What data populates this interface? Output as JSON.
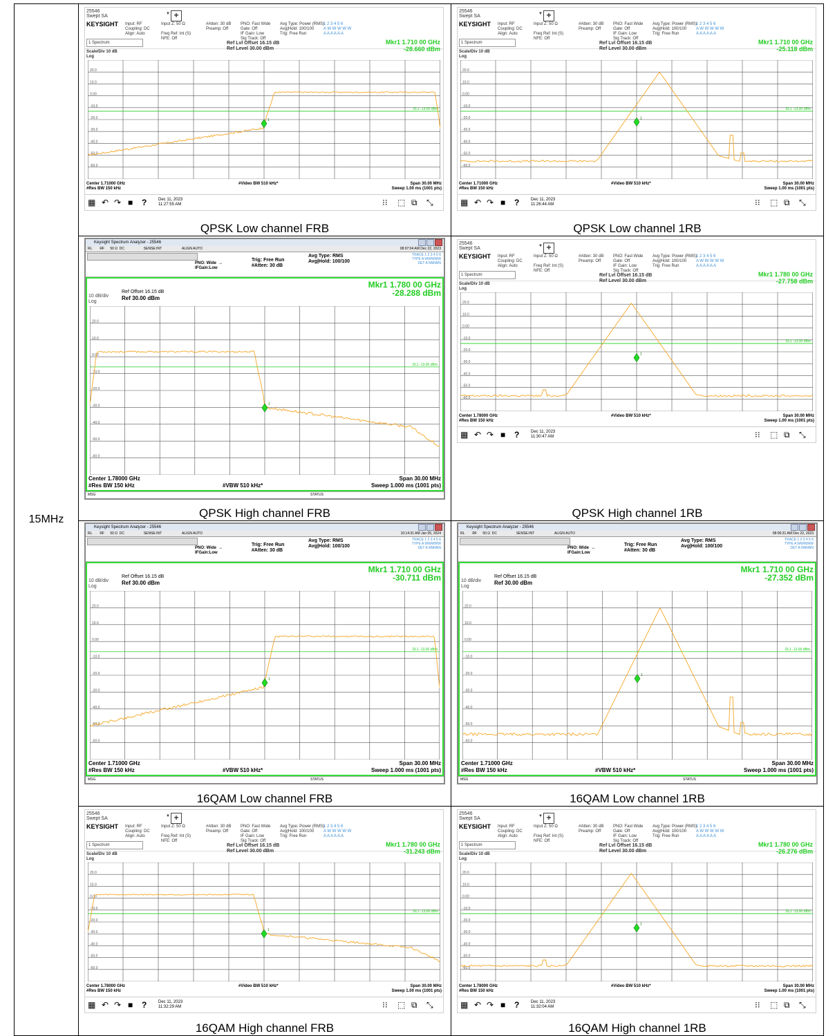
{
  "band_label": "15MHz",
  "keysight": {
    "instrument_id": "25546",
    "mode": "Swept SA",
    "brand": "KEYSIGHT",
    "input_col": "Input: RF\nCoupling: DC\nAlign: Auto",
    "imp_col": "Input Z: 50 Ω\n\nFreq Ref: Int (S)\nNFE: Off",
    "atten_col": "#Atten: 30 dB\nPreamp: Off",
    "pno_col": "PNO: Fast Wide\nGate: Off\nIF Gain: Low\nSig Track: Off",
    "avg_col": "Avg Type: Power (RMS)\nAvg|Hold: 100/100\nTrig: Free Run",
    "trace_col": "1 2 3 4 5 6\nA W W W W W\nA A A A A A",
    "spectrum_label": "1 Spectrum",
    "ref_offset": "Ref Lvl Offset 16.15 dB",
    "ref_level": "Ref Level 30.00 dBm",
    "scale": "Scale/Div 10 dB",
    "log": "Log",
    "vbw": "#Video BW 510 kHz*",
    "span": "Span 30.00 MHz",
    "sweep": "Sweep 1.00 ms (1001 pts)",
    "res_bw": "#Res BW 150 kHz"
  },
  "windows": {
    "title": "Keysight Spectrum Analyzer - 25546",
    "bar": "RL        RF      50 Ω  DC                    SENSE:INT                     ALIGN AUTO",
    "pno": "PNO: Wide  ↔  \nIFGain:Low",
    "trig": "Trig: Free Run\n#Atten: 30 dB",
    "avg": "Avg Type: RMS\nAvg|Hold: 100/100",
    "trace": "TRACE 1 2 3 4 5 6\nTYPE A WWWWW\nDET A NNNNN",
    "ref_offset": "Ref Offset 16.15 dB",
    "ref": "Ref 30.00 dBm",
    "scale": "10 dB/div",
    "log": "Log",
    "vbw": "#VBW 510 kHz*",
    "span": "Span 30.00 MHz",
    "sweep": "Sweep  1.000 ms (1001 pts)",
    "res_bw": "#Res BW 150 kHz",
    "msg": "MSG",
    "status": "STATUS",
    "dl_label": "DL1 -13.00 dBm"
  },
  "panels": [
    {
      "id": "p1",
      "caption": "QPSK Low channel FRB",
      "style": "keysight",
      "center": "Center 1.71000 GHz",
      "mkr_freq": "Mkr1  1.710 00 GHz",
      "mkr_val": "-28.660 dBm",
      "date": "Dec 11, 2023",
      "time": "11:27:55 AM",
      "trace": "frb-low"
    },
    {
      "id": "p2",
      "caption": "QPSK Low channel 1RB",
      "style": "keysight",
      "center": "Center 1.71000 GHz",
      "mkr_freq": "Mkr1  1.710 00 GHz",
      "mkr_val": "-25.118 dBm",
      "date": "Dec 11, 2023",
      "time": "11:26:44 AM",
      "trace": "1rb-low"
    },
    {
      "id": "p3",
      "caption": "QPSK High channel FRB",
      "style": "windows",
      "center": "Center 1.78000 GHz",
      "mkr_freq": "Mkr1 1.780 00 GHz",
      "mkr_val": "-28.288 dBm",
      "datetime": "08:07:04 AM Dec 22, 2023",
      "trace": "frb-high"
    },
    {
      "id": "p4",
      "caption": "QPSK High channel 1RB",
      "style": "keysight",
      "center": "Center 1.78000 GHz",
      "mkr_freq": "Mkr1  1.780 00 GHz",
      "mkr_val": "-27.758 dBm",
      "date": "Dec 11, 2023",
      "time": "11:30:47 AM",
      "trace": "1rb-high"
    },
    {
      "id": "p5",
      "caption": "16QAM Low channel FRB",
      "style": "windows",
      "center": "Center 1.71000 GHz",
      "mkr_freq": "Mkr1 1.710 00 GHz",
      "mkr_val": "-30.711 dBm",
      "datetime": "10:14:31 AM Jan 05, 2024",
      "trace": "frb-low"
    },
    {
      "id": "p6",
      "caption": "16QAM Low channel 1RB",
      "style": "windows",
      "center": "Center 1.71000 GHz",
      "mkr_freq": "Mkr1 1.710 00 GHz",
      "mkr_val": "-27.352 dBm",
      "datetime": "08:06:31 AM Dec 22, 2023",
      "trace": "1rb-low"
    },
    {
      "id": "p7",
      "caption": "16QAM High channel FRB",
      "style": "keysight",
      "center": "Center 1.78000 GHz",
      "mkr_freq": "Mkr1  1.780 00 GHz",
      "mkr_val": "-31.243 dBm",
      "date": "Dec 11, 2023",
      "time": "11:32:29 AM",
      "trace": "frb-high"
    },
    {
      "id": "p8",
      "caption": "16QAM High channel 1RB",
      "style": "keysight",
      "center": "Center 1.78000 GHz",
      "mkr_freq": "Mkr1  1.780 00 GHz",
      "mkr_val": "-26.276 dBm",
      "date": "Dec 11, 2023",
      "time": "11:32:04 AM",
      "trace": "1rb-high"
    }
  ],
  "y_ticks": [
    "20.0",
    "10.0",
    "0.00",
    "-10.0",
    "-20.0",
    "-30.0",
    "-40.0",
    "-50.0",
    "-60.0"
  ],
  "dl_label": "DL1 -13.00 dBm",
  "colors": {
    "trace": "#f5a623",
    "marker": "#22dd22",
    "grid": "#555555",
    "dl": "#22cc22"
  }
}
